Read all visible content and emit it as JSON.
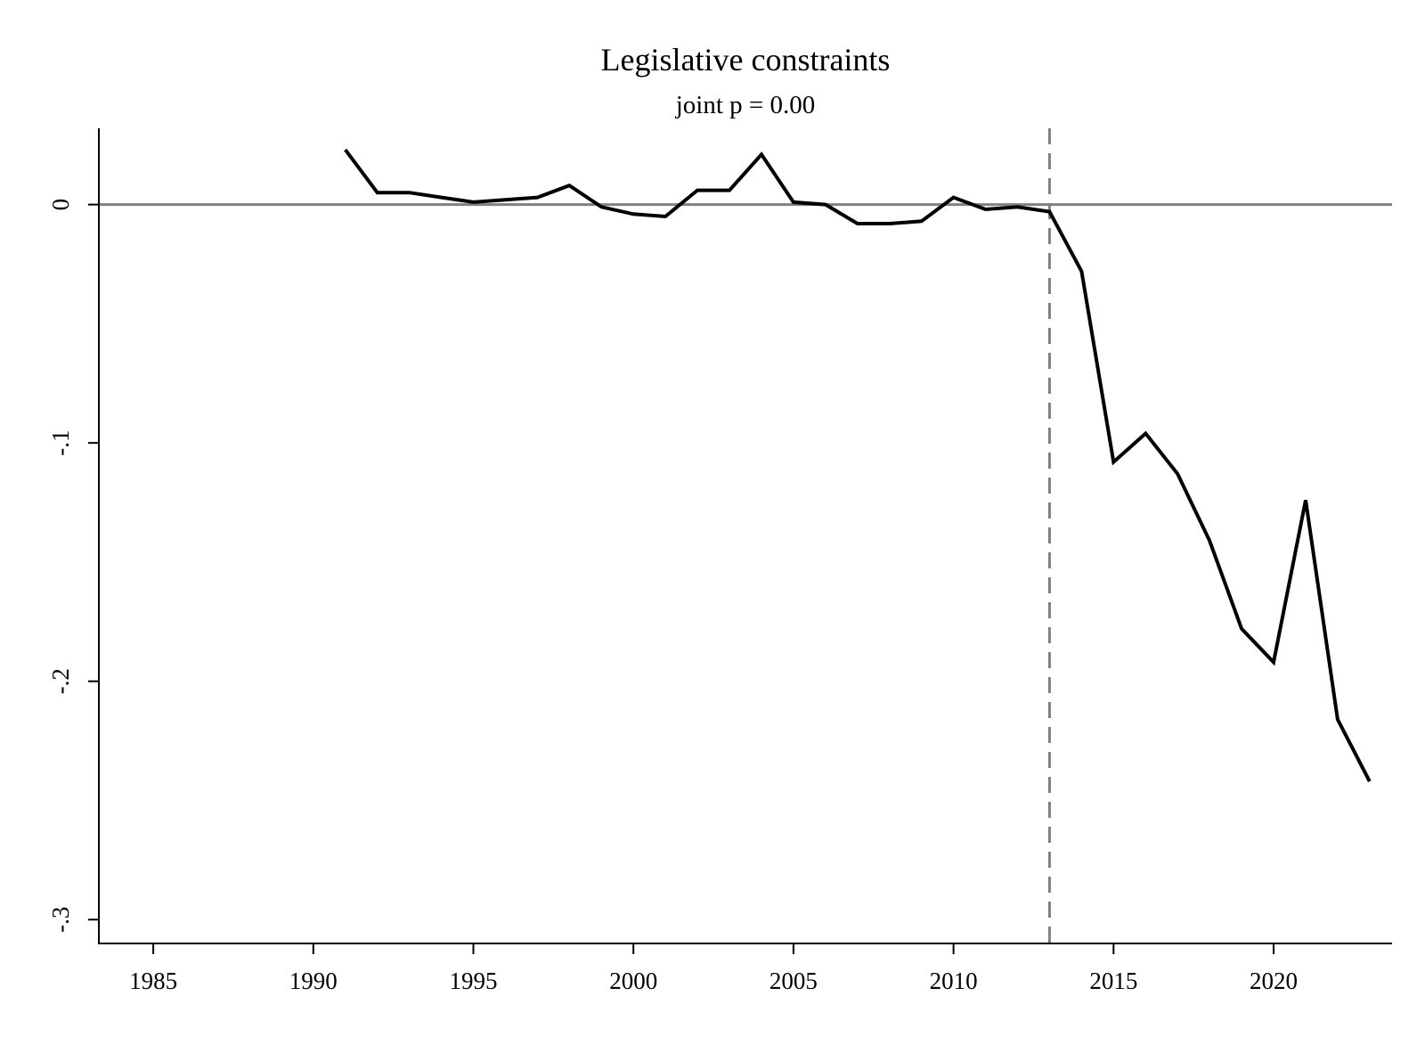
{
  "chart_data": {
    "type": "line",
    "title": "Legislative constraints",
    "subtitle": "joint p = 0.00",
    "xlabel": "",
    "ylabel": "",
    "xlim": [
      1983.3,
      2023.7
    ],
    "ylim": [
      -0.31,
      0.032
    ],
    "x_ticks": [
      1985,
      1990,
      1995,
      2000,
      2005,
      2010,
      2015,
      2020
    ],
    "x_tick_labels": [
      "1985",
      "1990",
      "1995",
      "2000",
      "2005",
      "2010",
      "2015",
      "2020"
    ],
    "y_ticks": [
      0,
      -0.1,
      -0.2,
      -0.3
    ],
    "y_tick_labels": [
      "0",
      "-.1",
      "-.2",
      "-.3"
    ],
    "reference_lines": {
      "horizontal_y": 0,
      "vertical_x": 2013
    },
    "grid": false,
    "legend": "none",
    "series": [
      {
        "x": [
          1991,
          1992,
          1993,
          1994,
          1995,
          1996,
          1997,
          1998,
          1999,
          2000,
          2001,
          2002,
          2003,
          2004,
          2005,
          2006,
          2007,
          2008,
          2009,
          2010,
          2011,
          2012,
          2013,
          2014,
          2015,
          2016,
          2017,
          2018,
          2019,
          2020,
          2021,
          2022,
          2023
        ],
        "values": [
          0.023,
          0.005,
          0.005,
          0.003,
          0.001,
          0.002,
          0.003,
          0.008,
          -0.001,
          -0.004,
          -0.005,
          0.006,
          0.006,
          0.021,
          0.001,
          0.0,
          -0.008,
          -0.008,
          -0.007,
          0.003,
          -0.002,
          -0.001,
          -0.003,
          -0.028,
          -0.108,
          -0.096,
          -0.113,
          -0.141,
          -0.178,
          -0.192,
          -0.124,
          -0.216,
          -0.242
        ]
      }
    ],
    "colors": {
      "line": "#000000",
      "reference": "#808080",
      "axis": "#000000"
    }
  }
}
